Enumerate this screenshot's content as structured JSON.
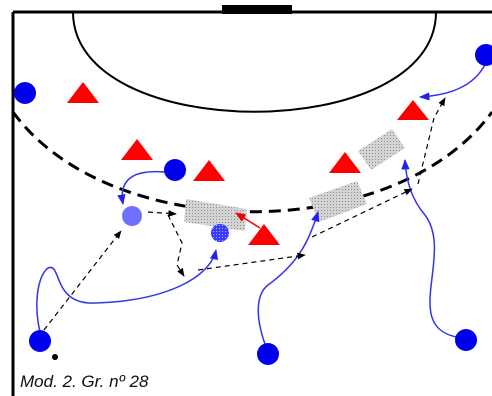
{
  "caption": "Mod. 2. Gr. nº 28",
  "colors": {
    "court_line": "#000000",
    "attacker": "#0000ee",
    "attacker_with_ball": "#7070ff",
    "defender": "#ff0000",
    "movement_path": "#3333ee",
    "pass_arrow": "#000000",
    "screen_zone": "#c8c8c8",
    "ball": "#000000"
  },
  "legend_semantics": {
    "circle": "attacker",
    "triangle": "defender",
    "dashed-arrow": "pass",
    "solid-arrow": "player-movement",
    "grey-rectangle": "screen-zone"
  }
}
